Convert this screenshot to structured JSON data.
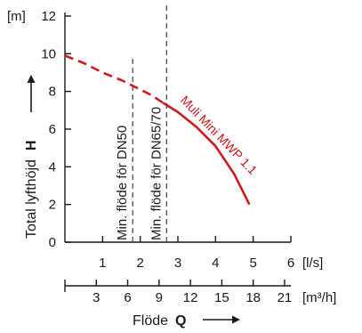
{
  "chart_data": {
    "type": "line",
    "y_unit": "[m]",
    "y_title_text": "Total lyfthöjd",
    "y_title_symbol": "H",
    "x_title_text": "Flöde",
    "x_title_symbol": "Q",
    "x_unit_primary": "[l/s]",
    "x_unit_secondary": "[m³/h]",
    "ylim": [
      0,
      12
    ],
    "xlim": [
      0,
      6
    ],
    "y_ticks": [
      0,
      2,
      4,
      6,
      8,
      10,
      12
    ],
    "x_ticks_primary": [
      1,
      2,
      3,
      4,
      5,
      6
    ],
    "x_ticks_secondary": [
      3,
      6,
      9,
      12,
      15,
      18,
      21
    ],
    "grid": false,
    "series": [
      {
        "name": "Muli Mini MWP 1.1",
        "color": "#cc1a1a",
        "dashed_segment": [
          [
            0,
            9.9
          ],
          [
            0.5,
            9.5
          ],
          [
            1.0,
            9.0
          ],
          [
            1.5,
            8.6
          ],
          [
            2.0,
            8.1
          ],
          [
            2.3,
            7.8
          ],
          [
            2.6,
            7.4
          ]
        ],
        "solid_segment": [
          [
            2.6,
            7.4
          ],
          [
            3.0,
            6.9
          ],
          [
            3.5,
            6.1
          ],
          [
            4.0,
            5.1
          ],
          [
            4.5,
            3.6
          ],
          [
            4.9,
            2.0
          ]
        ]
      }
    ],
    "annotations": [
      {
        "text": "Min. flöde för DN50",
        "x": 1.8,
        "style": "dashed"
      },
      {
        "text": "Min. flöde för DN65/70",
        "x": 2.7,
        "style": "dashed"
      }
    ]
  }
}
